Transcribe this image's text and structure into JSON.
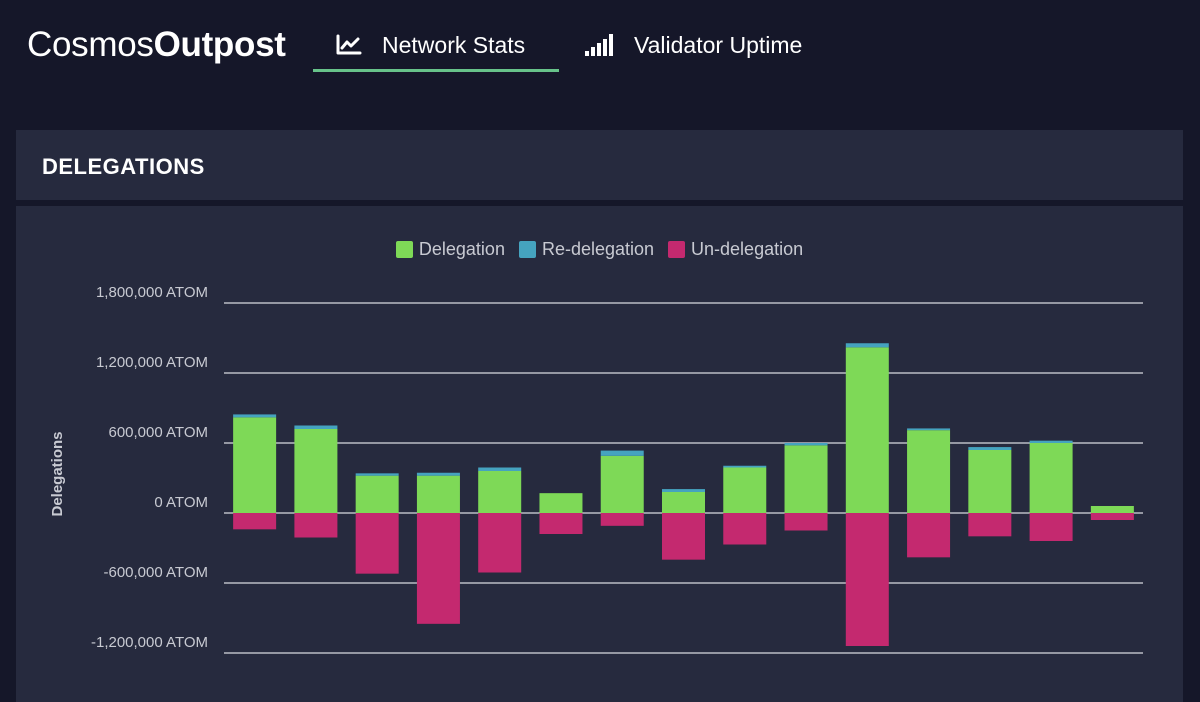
{
  "brand": {
    "light": "Cosmos",
    "bold": "Outpost"
  },
  "nav": {
    "tabs": [
      {
        "label": "Network Stats",
        "icon": "line-chart-icon",
        "active": true
      },
      {
        "label": "Validator Uptime",
        "icon": "signal-bars-icon",
        "active": false
      }
    ],
    "accent_color": "#67c38a"
  },
  "card": {
    "title": "DELEGATIONS"
  },
  "colors": {
    "delegation": "#7ed957",
    "redelegation": "#45a3bf",
    "undelegation": "#c4296f",
    "grid": "#d8dae0",
    "tick_text": "#c8cad2"
  },
  "chart_data": {
    "type": "bar",
    "stacked": true,
    "ylabel": "Delegations",
    "ylim": [
      -1200000,
      1800000
    ],
    "yticks": [
      1800000,
      1200000,
      600000,
      0,
      -600000,
      -1200000
    ],
    "ytick_labels": [
      "1,800,000 ATOM",
      "1,200,000 ATOM",
      "600,000 ATOM",
      "0 ATOM",
      "-600,000 ATOM",
      "-1,200,000 ATOM"
    ],
    "legend_position": "top-center",
    "series": [
      {
        "name": "Delegation",
        "values": [
          820000,
          720000,
          320000,
          320000,
          360000,
          170000,
          490000,
          180000,
          390000,
          580000,
          1420000,
          710000,
          540000,
          600000,
          60000
        ]
      },
      {
        "name": "Re-delegation",
        "values": [
          25000,
          30000,
          20000,
          25000,
          30000,
          0,
          45000,
          25000,
          15000,
          20000,
          35000,
          15000,
          25000,
          20000,
          0
        ]
      },
      {
        "name": "Un-delegation",
        "values": [
          -140000,
          -210000,
          -520000,
          -950000,
          -510000,
          -180000,
          -110000,
          -400000,
          -270000,
          -150000,
          -1140000,
          -380000,
          -200000,
          -240000,
          -60000
        ]
      }
    ]
  }
}
